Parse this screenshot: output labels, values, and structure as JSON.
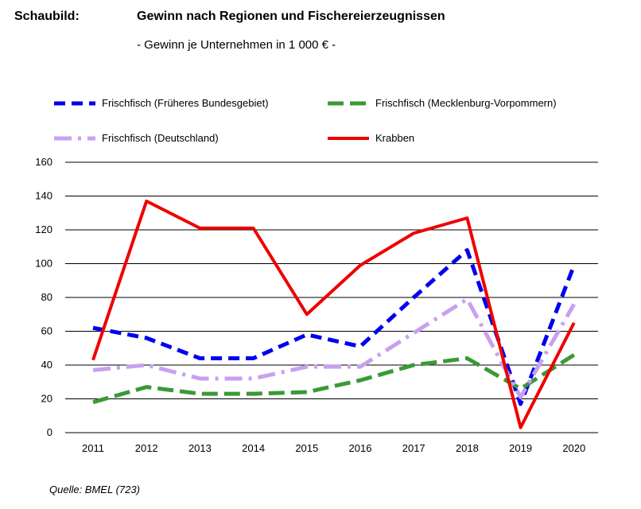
{
  "header": {
    "label": "Schaubild:",
    "title": "Gewinn nach Regionen und Fischereierzeugnissen",
    "subtitle": "- Gewinn je Unternehmen in 1 000 € -"
  },
  "source": "Quelle: BMEL (723)",
  "chart_data": {
    "type": "line",
    "categories": [
      "2011",
      "2012",
      "2013",
      "2014",
      "2015",
      "2016",
      "2017",
      "2018",
      "2019",
      "2020"
    ],
    "ylim": [
      0,
      160
    ],
    "yticks": [
      0,
      20,
      40,
      60,
      80,
      100,
      120,
      140,
      160
    ],
    "grid": true,
    "legend_placement": "top",
    "series": [
      {
        "name": "Frischfisch (Früheres Bundesgebiet)",
        "color": "#0000ee",
        "dash": "dashed",
        "values": [
          62,
          56,
          44,
          44,
          58,
          51,
          80,
          108,
          17,
          99
        ]
      },
      {
        "name": "Frischfisch (Mecklenburg-Vorpommern)",
        "color": "#3a9a35",
        "dash": "long-dashed",
        "values": [
          18,
          27,
          23,
          23,
          24,
          31,
          40,
          44,
          26,
          46
        ]
      },
      {
        "name": "Frischfisch (Deutschland)",
        "color": "#c9a0f0",
        "dash": "dash-dot",
        "values": [
          37,
          40,
          32,
          32,
          39,
          39,
          59,
          79,
          21,
          76
        ]
      },
      {
        "name": "Krabben",
        "color": "#ee0000",
        "dash": "solid",
        "values": [
          43,
          137,
          121,
          121,
          70,
          99,
          118,
          127,
          3,
          65
        ]
      }
    ]
  }
}
